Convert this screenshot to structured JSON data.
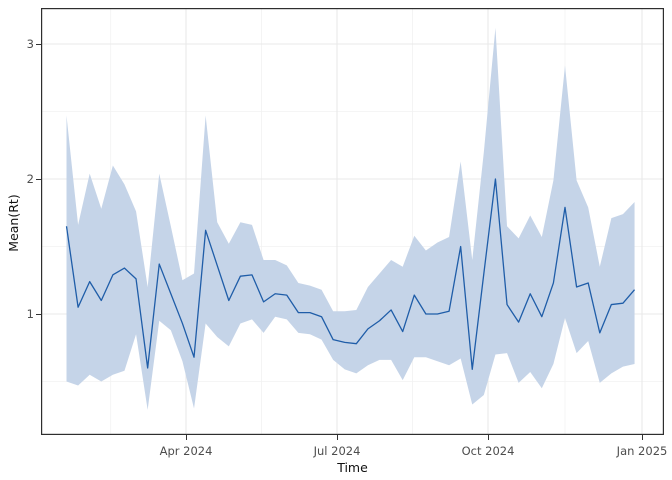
{
  "chart_data": {
    "type": "line",
    "title": "",
    "xlabel": "Time",
    "ylabel": "Mean(Rt)",
    "x_tick_labels": [
      "Apr 2024",
      "Jul 2024",
      "Oct 2024",
      "Jan 2025"
    ],
    "y_tick_labels": [
      "1",
      "2",
      "3"
    ],
    "ylim": [
      0.1,
      3.27
    ],
    "x_range_note": "weekly estimates from mid-January 2024 to end of December 2024",
    "grid": "major and minor gridlines, white panel with dark border (ggplot theme_bw style)",
    "legend_position": "none",
    "series": [
      {
        "name": "mean_rt",
        "values": [
          1.65,
          1.05,
          1.24,
          1.1,
          1.29,
          1.34,
          1.26,
          0.6,
          1.37,
          1.15,
          0.93,
          0.68,
          1.62,
          1.36,
          1.1,
          1.28,
          1.29,
          1.09,
          1.15,
          1.14,
          1.01,
          1.01,
          0.98,
          0.81,
          0.79,
          0.78,
          0.89,
          0.95,
          1.03,
          0.87,
          1.14,
          1.0,
          1.0,
          1.02,
          1.5,
          0.59,
          1.3,
          2.0,
          1.07,
          0.94,
          1.15,
          0.98,
          1.23,
          1.79,
          1.2,
          1.23,
          0.86,
          1.07,
          1.08,
          1.18
        ]
      },
      {
        "name": "lower_ci",
        "values": [
          0.5,
          0.47,
          0.55,
          0.5,
          0.55,
          0.58,
          0.85,
          0.29,
          0.95,
          0.88,
          0.65,
          0.3,
          0.93,
          0.83,
          0.76,
          0.93,
          0.96,
          0.86,
          0.98,
          0.96,
          0.86,
          0.85,
          0.81,
          0.66,
          0.59,
          0.56,
          0.62,
          0.66,
          0.66,
          0.51,
          0.68,
          0.68,
          0.65,
          0.62,
          0.67,
          0.33,
          0.4,
          0.7,
          0.71,
          0.49,
          0.57,
          0.45,
          0.63,
          0.97,
          0.71,
          0.8,
          0.49,
          0.56,
          0.61,
          0.63
        ]
      },
      {
        "name": "upper_ci",
        "values": [
          2.47,
          1.66,
          2.04,
          1.78,
          2.1,
          1.96,
          1.76,
          1.2,
          2.04,
          1.65,
          1.25,
          1.3,
          2.47,
          1.68,
          1.52,
          1.68,
          1.66,
          1.4,
          1.4,
          1.36,
          1.23,
          1.21,
          1.18,
          1.02,
          1.02,
          1.03,
          1.2,
          1.3,
          1.4,
          1.35,
          1.58,
          1.47,
          1.53,
          1.57,
          2.13,
          1.4,
          2.2,
          3.12,
          1.65,
          1.56,
          1.73,
          1.57,
          1.99,
          2.84,
          1.99,
          1.79,
          1.35,
          1.71,
          1.74,
          1.83
        ]
      }
    ],
    "colors": {
      "line": "#1f5da8",
      "ribbon": "#c5d4e8",
      "grid_major": "#e9e9e9",
      "grid_minor": "#f2f2f2",
      "panel_border": "#2e2e2e",
      "axis_text": "#4d4d4d",
      "axis_title": "#111111",
      "background": "#ffffff"
    }
  }
}
